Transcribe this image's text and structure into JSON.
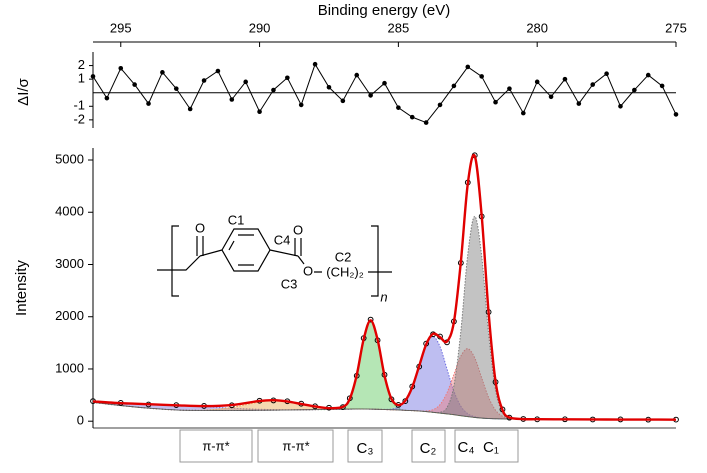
{
  "chart_data": [
    {
      "type": "line",
      "xlabel": "Binding energy (eV)",
      "ylabel": "ΔI/σ",
      "xlim": [
        296,
        275
      ],
      "xticks": [
        295,
        290,
        285,
        280,
        275
      ],
      "ylim": [
        -2.6,
        3.0
      ],
      "yticks": [
        2,
        1,
        -1,
        -2
      ],
      "color": "#000000",
      "x": [
        296,
        295.5,
        295,
        294.5,
        294,
        293.5,
        293,
        292.5,
        292,
        291.5,
        291,
        290.5,
        290,
        289.5,
        289,
        288.5,
        288,
        287.5,
        287,
        286.5,
        286,
        285.5,
        285,
        284.5,
        284,
        283.5,
        283,
        282.5,
        282,
        281.5,
        281,
        280.5,
        280,
        279.5,
        279,
        278.5,
        278,
        277.5,
        277,
        276.5,
        276,
        275.5,
        275
      ],
      "values": [
        1.2,
        -0.4,
        1.8,
        0.6,
        -0.8,
        1.5,
        0.3,
        -1.2,
        0.9,
        1.6,
        -0.5,
        0.8,
        -1.4,
        0.2,
        1.1,
        -0.9,
        2.1,
        0.4,
        -0.6,
        1.3,
        -0.2,
        0.7,
        -1.1,
        -1.8,
        -2.2,
        -0.9,
        0.5,
        1.9,
        1.2,
        -0.7,
        0.3,
        -1.5,
        0.8,
        -0.3,
        1.0,
        -0.8,
        0.6,
        1.4,
        -1.0,
        0.2,
        1.3,
        0.5,
        -1.6
      ]
    },
    {
      "type": "area",
      "ylabel": "Intensity",
      "xlim": [
        296,
        275
      ],
      "ylim": [
        -130,
        5230
      ],
      "yticks": [
        0,
        1000,
        2000,
        3000,
        4000,
        5000
      ],
      "x": [
        296,
        295,
        294,
        293,
        292,
        291,
        290,
        289.5,
        289,
        288.5,
        288,
        287.5,
        287,
        286.75,
        286.5,
        286.25,
        286,
        285.75,
        285.5,
        285.25,
        285,
        284.75,
        284.5,
        284.25,
        284,
        283.75,
        283.5,
        283.25,
        283,
        282.75,
        282.5,
        282.25,
        282,
        281.75,
        281.5,
        281.25,
        281,
        280.5,
        280,
        279,
        278,
        277,
        276,
        275
      ],
      "background": {
        "color": "#555555",
        "values": [
          360,
          300,
          250,
          215,
          205,
          205,
          210,
          212,
          215,
          218,
          222,
          226,
          230,
          232,
          234,
          234,
          232,
          228,
          224,
          220,
          216,
          208,
          203,
          196,
          185,
          170,
          155,
          140,
          125,
          105,
          88,
          72,
          60,
          52,
          47,
          44,
          42,
          40,
          38,
          36,
          34,
          32,
          31,
          30
        ]
      },
      "series": [
        {
          "label": "π-π*",
          "color": "#7b6fd6",
          "values": [
            19,
            45,
            76,
            90,
            76,
            45,
            19,
            11,
            5,
            3,
            1,
            0,
            0,
            0,
            0,
            0,
            0,
            0,
            0,
            0,
            0,
            0,
            0,
            0,
            0,
            0,
            0,
            0,
            0,
            0,
            0,
            0,
            0,
            0,
            0,
            0,
            0,
            0,
            0,
            0,
            0,
            0,
            0,
            0
          ]
        },
        {
          "label": "π-π*",
          "color": "#e8a850",
          "values": [
            0,
            0,
            0,
            0,
            8,
            59,
            159,
            180,
            159,
            109,
            59,
            24,
            8,
            4,
            2,
            1,
            0,
            0,
            0,
            0,
            0,
            0,
            0,
            0,
            0,
            0,
            0,
            0,
            0,
            0,
            0,
            0,
            0,
            0,
            0,
            0,
            0,
            0,
            0,
            0,
            0,
            0,
            0,
            0
          ]
        },
        {
          "label": "C₃",
          "color": "#5cc85c",
          "values": [
            0,
            0,
            0,
            0,
            0,
            0,
            0,
            0,
            0,
            0,
            0,
            0,
            36,
            194,
            648,
            1336,
            1700,
            1336,
            648,
            194,
            36,
            4,
            0,
            0,
            0,
            0,
            0,
            0,
            0,
            0,
            0,
            0,
            0,
            0,
            0,
            0,
            0,
            0,
            0,
            0,
            0,
            0,
            0,
            0
          ]
        },
        {
          "label": "C₂",
          "color": "#6f6fe0",
          "values": [
            0,
            0,
            0,
            0,
            0,
            0,
            0,
            0,
            0,
            0,
            0,
            0,
            0,
            0,
            0,
            0,
            0,
            0,
            2,
            13,
            56,
            181,
            450,
            861,
            1273,
            1450,
            1273,
            861,
            450,
            181,
            56,
            13,
            2,
            0,
            0,
            0,
            0,
            0,
            0,
            0,
            0,
            0,
            0,
            0
          ]
        },
        {
          "label": "C₄",
          "color": "#ee7a7a",
          "values": [
            0,
            0,
            0,
            0,
            0,
            0,
            0,
            0,
            0,
            0,
            0,
            0,
            0,
            0,
            0,
            0,
            0,
            0,
            0,
            0,
            0,
            0,
            0,
            2,
            12,
            51,
            163,
            403,
            772,
            1141,
            1300,
            1141,
            772,
            403,
            163,
            51,
            12,
            0,
            0,
            0,
            0,
            0,
            0,
            0
          ]
        },
        {
          "label": "C₁",
          "color": "#7a7a7a",
          "values": [
            0,
            0,
            0,
            0,
            0,
            0,
            0,
            0,
            0,
            0,
            0,
            0,
            0,
            0,
            0,
            0,
            0,
            0,
            0,
            0,
            0,
            0,
            0,
            0,
            0,
            1,
            17,
            121,
            551,
            1621,
            3103,
            3850,
            3103,
            1621,
            551,
            121,
            17,
            0,
            0,
            0,
            0,
            0,
            0,
            0
          ]
        }
      ],
      "fit": {
        "color": "#e00000",
        "values": [
          379,
          345,
          326,
          305,
          289,
          309,
          388,
          403,
          379,
          330,
          282,
          250,
          274,
          430,
          884,
          1571,
          1932,
          1564,
          874,
          427,
          308,
          393,
          653,
          1059,
          1470,
          1672,
          1608,
          1525,
          1898,
          3048,
          4547,
          5076,
          3937,
          2076,
          761,
          216,
          71,
          40,
          38,
          36,
          34,
          32,
          31,
          30
        ]
      },
      "measured": {
        "color": "#000000",
        "values": [
          385,
          350,
          320,
          308,
          292,
          305,
          392,
          398,
          382,
          335,
          285,
          258,
          270,
          440,
          870,
          1590,
          1945,
          1550,
          890,
          420,
          312,
          385,
          665,
          1045,
          1485,
          1665,
          1620,
          1510,
          1910,
          3030,
          4570,
          5090,
          3920,
          2090,
          750,
          225,
          68,
          43,
          36,
          37,
          33,
          34,
          30,
          31
        ]
      },
      "structure": {
        "label_color": "#e0201a",
        "carbon_labels": [
          "C1",
          "C4",
          "C2",
          "C3"
        ],
        "atoms": [
          "O",
          "O",
          "O"
        ],
        "chain": "(CH₂)₂",
        "repeat": "n"
      }
    }
  ]
}
